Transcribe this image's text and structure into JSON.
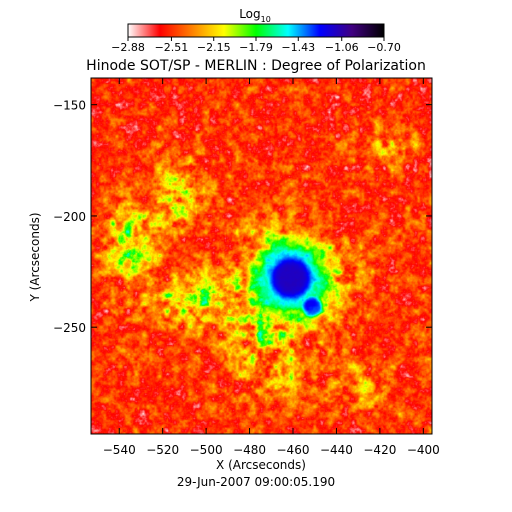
{
  "chart_data": {
    "type": "heatmap",
    "title": "Hinode SOT/SP - MERLIN : Degree of Polarization",
    "xlabel": "X (Arcseconds)",
    "ylabel": "Y (Arcseconds)",
    "timestamp": "29-Jun-2007 09:00:05.190",
    "xlim": [
      -553,
      -396
    ],
    "ylim": [
      -298,
      -138
    ],
    "x_ticks": [
      -540,
      -520,
      -500,
      -480,
      -460,
      -440,
      -420,
      -400
    ],
    "x_tick_labels": [
      "−540",
      "−520",
      "−500",
      "−480",
      "−460",
      "−440",
      "−420",
      "−400"
    ],
    "y_ticks": [
      -150,
      -200,
      -250
    ],
    "y_tick_labels": [
      "−150",
      "−200",
      "−250"
    ],
    "colorbar": {
      "title_base": "Log",
      "title_sub": "10",
      "range": [
        -2.88,
        -0.7
      ],
      "ticks": [
        -2.88,
        -2.51,
        -2.15,
        -1.79,
        -1.43,
        -1.06,
        -0.7
      ],
      "tick_labels": [
        "−2.88",
        "−2.51",
        "−2.15",
        "−1.79",
        "−1.43",
        "−1.06",
        "−0.70"
      ],
      "colormap": [
        "#ffffff",
        "#ff0000",
        "#ff8000",
        "#ffff00",
        "#00ff00",
        "#00ffff",
        "#0000ff",
        "#400080",
        "#000000"
      ]
    },
    "features": {
      "sunspot_umbra_center": [
        -461,
        -228
      ],
      "sunspot_umbra_radius_arcsec": 9,
      "background_level": -2.7
    }
  }
}
